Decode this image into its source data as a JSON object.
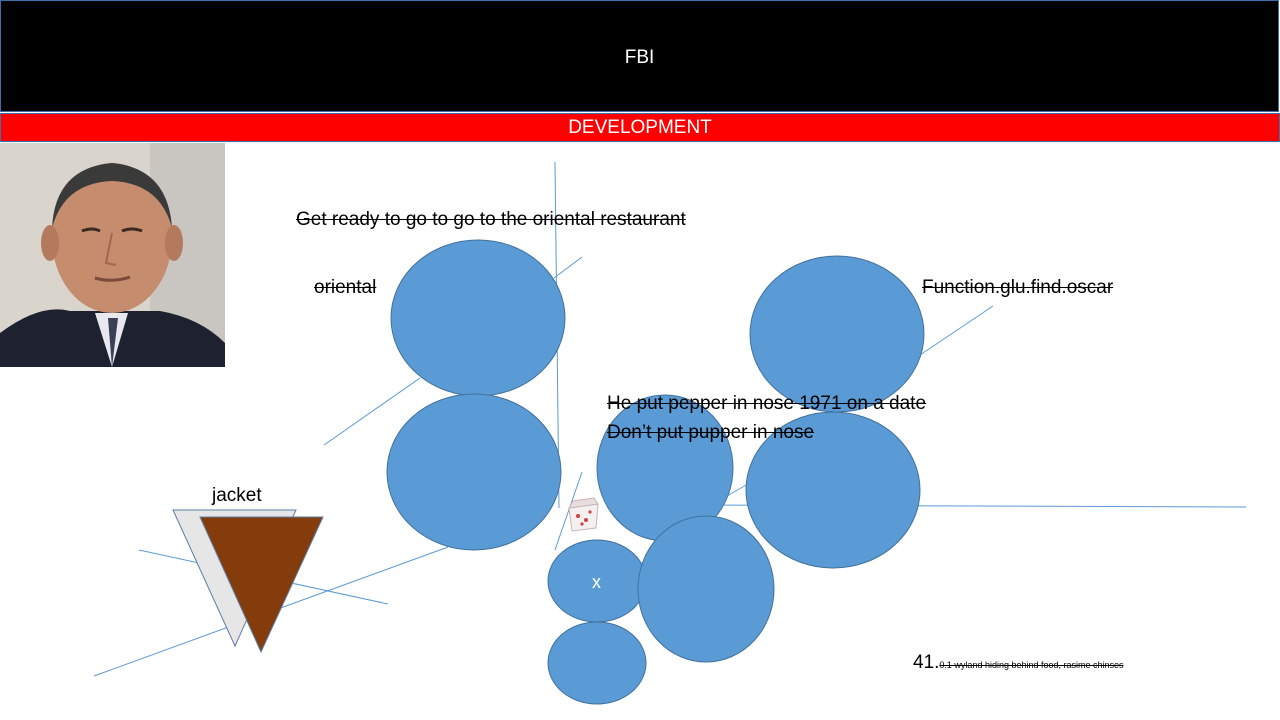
{
  "header": {
    "title": "FBI"
  },
  "band": {
    "title": "DEVELOPMENT"
  },
  "texts": {
    "restaurant": "Get ready to go to go to the oriental restaurant",
    "oriental": "oriental",
    "function": "Function.glu.find.oscar",
    "pepper1": "He put pepper in nose 1971 on a date",
    "pepper2": "Don’t put pupper in nose",
    "jacket": "jacket",
    "circle_x": "x",
    "footnote_number": "41.",
    "footnote_text": "0.1 wyland hiding behind food, rasime chinses"
  },
  "colors": {
    "header_bg": "#000000",
    "band_bg": "#ff0000",
    "circle_fill": "#5b9bd5",
    "circle_stroke": "#41719c",
    "line": "#5b9bd5",
    "triangle_brown": "#843c0c",
    "triangle_grey": "#e7e6e6"
  }
}
